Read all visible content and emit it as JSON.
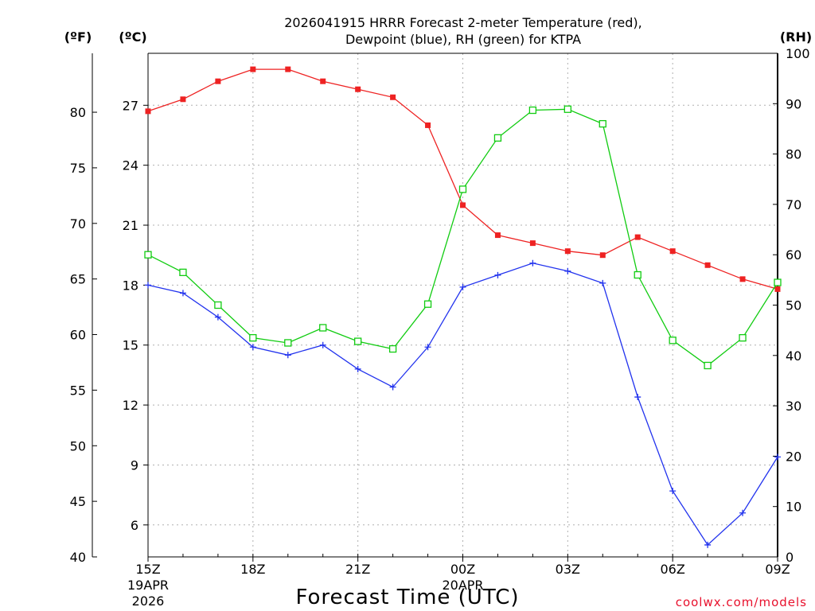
{
  "chart_data": {
    "type": "line",
    "title_line1": "2026041915 HRRR Forecast 2-meter Temperature (red),",
    "title_line2": "Dewpoint (blue), RH (green) for KTPA",
    "xlabel": "Forecast Time (UTC)",
    "credit": "coolwx.com/models",
    "units": {
      "fahrenheit": "(ºF)",
      "celsius": "(ºC)",
      "rh": "(RH)"
    },
    "x_hours": [
      15,
      16,
      17,
      18,
      19,
      20,
      21,
      22,
      23,
      24,
      25,
      26,
      27,
      28,
      29,
      30,
      31,
      32,
      33
    ],
    "x_ticks": [
      {
        "hour": 15,
        "label": "15Z",
        "sub1": "19APR",
        "sub2": "2026"
      },
      {
        "hour": 18,
        "label": "18Z",
        "sub1": "",
        "sub2": ""
      },
      {
        "hour": 21,
        "label": "21Z",
        "sub1": "",
        "sub2": ""
      },
      {
        "hour": 24,
        "label": "00Z",
        "sub1": "20APR",
        "sub2": ""
      },
      {
        "hour": 27,
        "label": "03Z",
        "sub1": "",
        "sub2": ""
      },
      {
        "hour": 30,
        "label": "06Z",
        "sub1": "",
        "sub2": ""
      },
      {
        "hour": 33,
        "label": "09Z",
        "sub1": "",
        "sub2": ""
      }
    ],
    "y_celsius": {
      "range": [
        4.4,
        29.6
      ],
      "ticks": [
        6,
        9,
        12,
        15,
        18,
        21,
        24,
        27
      ]
    },
    "y_fahrenheit": {
      "range": [
        40,
        85.3
      ],
      "ticks": [
        40,
        45,
        50,
        55,
        60,
        65,
        70,
        75,
        80
      ]
    },
    "y_rh": {
      "range": [
        0,
        100
      ],
      "ticks": [
        0,
        10,
        20,
        30,
        40,
        50,
        60,
        70,
        80,
        90,
        100
      ]
    },
    "grid": true,
    "series": [
      {
        "name": "Temperature",
        "axis": "celsius",
        "color": "#ee2222",
        "marker": "filled-square",
        "values": [
          26.7,
          27.3,
          28.2,
          28.8,
          28.8,
          28.2,
          27.8,
          27.4,
          26.0,
          22.0,
          20.5,
          20.1,
          19.7,
          19.5,
          20.4,
          19.7,
          19.0,
          18.3,
          17.8
        ]
      },
      {
        "name": "Dewpoint",
        "axis": "celsius",
        "color": "#2233ee",
        "marker": "plus",
        "values": [
          18.0,
          17.6,
          16.4,
          14.9,
          14.5,
          15.0,
          13.8,
          12.9,
          14.9,
          17.9,
          18.5,
          19.1,
          18.7,
          18.1,
          12.4,
          7.7,
          5.0,
          6.6,
          9.4
        ]
      },
      {
        "name": "RH",
        "axis": "rh",
        "color": "#11cc11",
        "marker": "open-square",
        "values": [
          60,
          56.5,
          50,
          43.5,
          42.5,
          45.5,
          42.8,
          41.3,
          50.2,
          73,
          83.2,
          88.7,
          88.9,
          86,
          56,
          43,
          38,
          43.5,
          54.5
        ]
      }
    ]
  }
}
